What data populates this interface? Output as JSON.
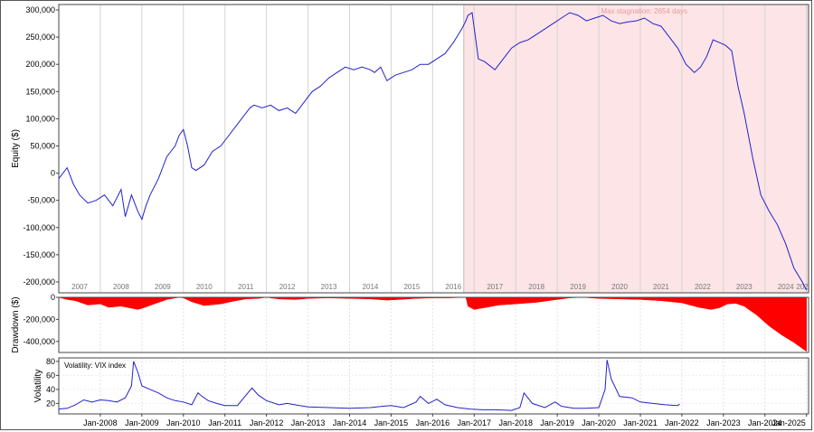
{
  "chart_data": [
    {
      "type": "line",
      "panel": "equity",
      "ylabel": "Equity ($)",
      "ylim": [
        -220000,
        310000
      ],
      "yticks": [
        300000,
        250000,
        200000,
        150000,
        100000,
        50000,
        0,
        -50000,
        -100000,
        -150000,
        -200000
      ],
      "ytick_labels": [
        "300,000",
        "250,000",
        "200,000",
        "150,000",
        "100,000",
        "50,000",
        "0",
        "-50,000",
        "-100,000",
        "-150,000",
        "-200,000"
      ],
      "year_labels": [
        "2007",
        "2008",
        "2009",
        "2010",
        "2011",
        "2012",
        "2013",
        "2014",
        "2015",
        "2016",
        "2017",
        "2018",
        "2019",
        "2020",
        "2021",
        "2022",
        "2023",
        "2024",
        "202"
      ],
      "annotation": "Max stagnation: 2654 days",
      "stagnation_range": [
        2016.75,
        2025.0
      ],
      "line_color": "#2222cc",
      "shade_color": "#fde4e7",
      "x": [
        2007.0,
        2007.2,
        2007.35,
        2007.5,
        2007.7,
        2007.9,
        2008.1,
        2008.3,
        2008.5,
        2008.6,
        2008.75,
        2008.9,
        2009.0,
        2009.1,
        2009.2,
        2009.4,
        2009.6,
        2009.8,
        2009.9,
        2010.0,
        2010.1,
        2010.2,
        2010.3,
        2010.5,
        2010.7,
        2010.9,
        2011.1,
        2011.3,
        2011.5,
        2011.6,
        2011.7,
        2011.9,
        2012.1,
        2012.3,
        2012.5,
        2012.7,
        2012.9,
        2013.1,
        2013.3,
        2013.5,
        2013.7,
        2013.9,
        2014.1,
        2014.3,
        2014.5,
        2014.6,
        2014.75,
        2014.9,
        2015.1,
        2015.3,
        2015.5,
        2015.7,
        2015.9,
        2016.1,
        2016.3,
        2016.5,
        2016.7,
        2016.8,
        2016.85,
        2016.95,
        2017.1,
        2017.25,
        2017.5,
        2017.7,
        2017.9,
        2018.1,
        2018.3,
        2018.5,
        2018.7,
        2018.9,
        2019.1,
        2019.3,
        2019.5,
        2019.7,
        2019.9,
        2020.1,
        2020.3,
        2020.5,
        2020.7,
        2020.9,
        2021.1,
        2021.3,
        2021.5,
        2021.7,
        2021.9,
        2022.1,
        2022.3,
        2022.45,
        2022.6,
        2022.75,
        2022.9,
        2023.05,
        2023.2,
        2023.35,
        2023.5,
        2023.7,
        2023.9,
        2024.1,
        2024.3,
        2024.5,
        2024.7,
        2024.9,
        2025.0
      ],
      "y": [
        -10000,
        10000,
        -20000,
        -40000,
        -55000,
        -50000,
        -40000,
        -60000,
        -30000,
        -80000,
        -40000,
        -70000,
        -85000,
        -60000,
        -40000,
        -10000,
        30000,
        50000,
        70000,
        80000,
        50000,
        10000,
        5000,
        15000,
        40000,
        50000,
        70000,
        90000,
        110000,
        120000,
        125000,
        120000,
        125000,
        115000,
        120000,
        110000,
        130000,
        150000,
        160000,
        175000,
        185000,
        195000,
        190000,
        195000,
        190000,
        185000,
        195000,
        170000,
        180000,
        185000,
        190000,
        200000,
        200000,
        210000,
        220000,
        240000,
        265000,
        280000,
        290000,
        295000,
        210000,
        205000,
        190000,
        210000,
        230000,
        240000,
        245000,
        255000,
        265000,
        275000,
        285000,
        295000,
        290000,
        280000,
        285000,
        290000,
        280000,
        275000,
        278000,
        280000,
        285000,
        275000,
        270000,
        250000,
        230000,
        200000,
        185000,
        195000,
        215000,
        245000,
        240000,
        235000,
        225000,
        160000,
        110000,
        30000,
        -40000,
        -70000,
        -95000,
        -130000,
        -175000,
        -200000,
        -215000
      ]
    },
    {
      "type": "area",
      "panel": "drawdown",
      "ylabel": "Drawdown ($)",
      "ylim": [
        -500000,
        0
      ],
      "yticks": [
        0,
        -200000,
        -400000
      ],
      "ytick_labels": [
        "0",
        "-200,000",
        "-400,000"
      ],
      "fill_color": "#ff0000",
      "x": [
        2007.0,
        2007.2,
        2007.4,
        2007.7,
        2008.0,
        2008.2,
        2008.5,
        2008.9,
        2009.0,
        2009.3,
        2009.6,
        2009.9,
        2010.0,
        2010.2,
        2010.5,
        2010.9,
        2011.2,
        2011.5,
        2011.8,
        2012.0,
        2012.3,
        2012.7,
        2013.0,
        2013.5,
        2014.0,
        2014.5,
        2014.9,
        2015.2,
        2015.6,
        2016.0,
        2016.4,
        2016.8,
        2016.85,
        2017.0,
        2017.3,
        2017.6,
        2018.0,
        2018.5,
        2019.0,
        2019.3,
        2019.6,
        2020.0,
        2020.5,
        2021.0,
        2021.5,
        2022.0,
        2022.4,
        2022.7,
        2022.9,
        2023.1,
        2023.3,
        2023.5,
        2023.8,
        2024.1,
        2024.4,
        2024.7,
        2025.0
      ],
      "y": [
        0,
        -20000,
        -30000,
        -70000,
        -60000,
        -90000,
        -80000,
        -110000,
        -100000,
        -60000,
        -20000,
        0,
        -5000,
        -40000,
        -75000,
        -60000,
        -35000,
        -15000,
        -10000,
        0,
        -15000,
        -20000,
        -10000,
        -5000,
        -10000,
        -15000,
        -25000,
        -20000,
        -10000,
        -5000,
        -5000,
        0,
        -80000,
        -110000,
        -90000,
        -70000,
        -60000,
        -45000,
        -20000,
        -5000,
        0,
        -10000,
        -15000,
        -20000,
        -30000,
        -50000,
        -90000,
        -110000,
        -95000,
        -60000,
        -55000,
        -80000,
        -160000,
        -260000,
        -340000,
        -410000,
        -490000
      ]
    },
    {
      "type": "line",
      "panel": "volatility",
      "title": "Volatility: VIX index",
      "ylabel": "Volatility",
      "ylim": [
        5,
        85
      ],
      "yticks": [
        80,
        60,
        40,
        20
      ],
      "ytick_labels": [
        "80",
        "60",
        "40",
        "20"
      ],
      "xtick_labels": [
        "Jan-2008",
        "Jan-2009",
        "Jan-2010",
        "Jan-2011",
        "Jan-2012",
        "Jan-2013",
        "Jan-2014",
        "Jan-2015",
        "Jan-2016",
        "Jan-2017",
        "Jan-2018",
        "Jan-2019",
        "Jan-2020",
        "Jan-2021",
        "Jan-2022",
        "Jan-2023",
        "Jan-2024",
        "Jan-2025"
      ],
      "xtick_positions": [
        2008.0,
        2009.0,
        2010.0,
        2011.0,
        2012.0,
        2013.0,
        2014.0,
        2015.0,
        2016.0,
        2017.0,
        2018.0,
        2019.0,
        2020.0,
        2021.0,
        2022.0,
        2023.0,
        2024.0,
        2025.0
      ],
      "line_color": "#2222cc",
      "x": [
        2007.0,
        2007.2,
        2007.4,
        2007.6,
        2007.8,
        2008.0,
        2008.2,
        2008.4,
        2008.6,
        2008.75,
        2008.8,
        2008.9,
        2009.0,
        2009.2,
        2009.4,
        2009.6,
        2009.8,
        2010.0,
        2010.2,
        2010.35,
        2010.45,
        2010.6,
        2010.8,
        2011.0,
        2011.3,
        2011.55,
        2011.65,
        2011.8,
        2012.0,
        2012.3,
        2012.5,
        2012.8,
        2013.0,
        2013.5,
        2014.0,
        2014.5,
        2014.8,
        2015.0,
        2015.3,
        2015.6,
        2015.7,
        2015.9,
        2016.1,
        2016.3,
        2016.6,
        2016.9,
        2017.2,
        2017.5,
        2017.9,
        2018.1,
        2018.2,
        2018.4,
        2018.7,
        2018.95,
        2019.1,
        2019.4,
        2019.7,
        2020.0,
        2020.15,
        2020.2,
        2020.3,
        2020.5,
        2020.8,
        2021.0,
        2021.3,
        2021.6,
        2021.9,
        2021.95
      ],
      "y": [
        12,
        13,
        18,
        25,
        22,
        25,
        24,
        22,
        28,
        45,
        80,
        65,
        45,
        40,
        35,
        28,
        24,
        22,
        18,
        35,
        30,
        24,
        20,
        17,
        17,
        35,
        42,
        32,
        24,
        18,
        20,
        17,
        15,
        14,
        13,
        14,
        16,
        17,
        14,
        22,
        30,
        20,
        26,
        18,
        14,
        12,
        11,
        11,
        10,
        14,
        35,
        20,
        14,
        22,
        16,
        13,
        13,
        14,
        40,
        82,
        55,
        30,
        28,
        22,
        20,
        18,
        17,
        19
      ]
    }
  ]
}
